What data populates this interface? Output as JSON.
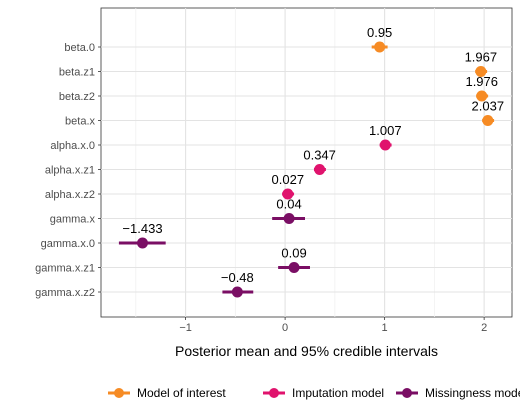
{
  "chart_data": {
    "type": "scatter",
    "xlabel": "Posterior mean and 95% credible intervals",
    "xlim": [
      -1.85,
      2.28
    ],
    "xticks": [
      -1,
      0,
      1,
      2
    ],
    "xtick_labels": [
      "−1",
      "0",
      "1",
      "2"
    ],
    "grid": true,
    "legend_position": "bottom",
    "colors": {
      "Model of interest": "#F68B24",
      "Imputation model": "#E0136D",
      "Missingness model": "#7A0E64"
    },
    "series": [
      {
        "name": "Model of interest",
        "color": "#F68B24"
      },
      {
        "name": "Imputation model",
        "color": "#E0136D"
      },
      {
        "name": "Missingness model",
        "color": "#7A0E64"
      }
    ],
    "points": [
      {
        "label": "beta.0",
        "series": "Model of interest",
        "mean": 0.95,
        "lower": 0.87,
        "upper": 1.03,
        "text": "0.95"
      },
      {
        "label": "beta.z1",
        "series": "Model of interest",
        "mean": 1.967,
        "lower": 1.91,
        "upper": 2.03,
        "text": "1.967"
      },
      {
        "label": "beta.z2",
        "series": "Model of interest",
        "mean": 1.976,
        "lower": 1.92,
        "upper": 2.04,
        "text": "1.976"
      },
      {
        "label": "beta.x",
        "series": "Model of interest",
        "mean": 2.037,
        "lower": 1.98,
        "upper": 2.1,
        "text": "2.037"
      },
      {
        "label": "alpha.x.0",
        "series": "Imputation model",
        "mean": 1.007,
        "lower": 0.95,
        "upper": 1.07,
        "text": "1.007"
      },
      {
        "label": "alpha.x.z1",
        "series": "Imputation model",
        "mean": 0.347,
        "lower": 0.29,
        "upper": 0.41,
        "text": "0.347"
      },
      {
        "label": "alpha.x.z2",
        "series": "Imputation model",
        "mean": 0.027,
        "lower": -0.03,
        "upper": 0.09,
        "text": "0.027"
      },
      {
        "label": "gamma.x",
        "series": "Missingness model",
        "mean": 0.04,
        "lower": -0.13,
        "upper": 0.2,
        "text": "0.04"
      },
      {
        "label": "gamma.x.0",
        "series": "Missingness model",
        "mean": -1.433,
        "lower": -1.67,
        "upper": -1.2,
        "text": "−1.433"
      },
      {
        "label": "gamma.x.z1",
        "series": "Missingness model",
        "mean": 0.09,
        "lower": -0.07,
        "upper": 0.25,
        "text": "0.09"
      },
      {
        "label": "gamma.x.z2",
        "series": "Missingness model",
        "mean": -0.48,
        "lower": -0.63,
        "upper": -0.32,
        "text": "−0.48"
      }
    ]
  }
}
